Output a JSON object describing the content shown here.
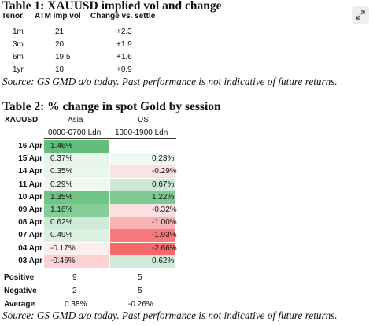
{
  "table1": {
    "title": "Table 1: XAUUSD implied vol and change",
    "headers": [
      "Tenor",
      "ATM imp vol",
      "Change vs. settle"
    ],
    "rows": [
      {
        "tenor": "1m",
        "vol": "21",
        "change": "+2.3"
      },
      {
        "tenor": "3m",
        "vol": "20",
        "change": "+1.9"
      },
      {
        "tenor": "6m",
        "vol": "19.5",
        "change": "+1.6"
      },
      {
        "tenor": "1yr",
        "vol": "18",
        "change": "+0.9"
      }
    ],
    "source": "Source: GS GMD a/o today. Past performance is not indicative of future returns."
  },
  "table2": {
    "title": "Table 2: % change in spot Gold by session",
    "corner": "XAUUSD",
    "col_asia": "Asia",
    "col_us": "US",
    "sub_asia": "0000-0700 Ldn",
    "sub_us": "1300-1900 Ldn",
    "rows": [
      {
        "date": "16 Apr",
        "asia": "1.46%",
        "us": "",
        "asia_color": "#63be7b",
        "us_color": "#ffffff"
      },
      {
        "date": "15 Apr",
        "asia": "0.37%",
        "us": "0.23%",
        "asia_color": "#e8f5eb",
        "us_color": "#f1f9f3"
      },
      {
        "date": "14 Apr",
        "asia": "0.35%",
        "us": "-0.29%",
        "asia_color": "#eaf6ed",
        "us_color": "#fbe2e3"
      },
      {
        "date": "11 Apr",
        "asia": "0.29%",
        "us": "0.67%",
        "asia_color": "#eef8f1",
        "us_color": "#cbe9d4"
      },
      {
        "date": "10 Apr",
        "asia": "1.35%",
        "us": "1.22%",
        "asia_color": "#70c486",
        "us_color": "#7fca93"
      },
      {
        "date": "09 Apr",
        "asia": "1.16%",
        "us": "-0.32%",
        "asia_color": "#86cd98",
        "us_color": "#fbe0e1"
      },
      {
        "date": "08 Apr",
        "asia": "0.62%",
        "us": "-1.00%",
        "asia_color": "#cfebd8",
        "us_color": "#f9b3b5"
      },
      {
        "date": "07 Apr",
        "asia": "0.49%",
        "us": "-1.93%",
        "asia_color": "#ddf1e3",
        "us_color": "#f8797b"
      },
      {
        "date": "04 Apr",
        "asia": "-0.17%",
        "us": "-2.66%",
        "asia_color": "#fcedee",
        "us_color": "#f8696b"
      },
      {
        "date": "03 Apr",
        "asia": "-0.46%",
        "us": "0.62%",
        "asia_color": "#fad2d4",
        "us_color": "#cfebd8"
      }
    ],
    "summary": [
      {
        "label": "Positive",
        "asia": "9",
        "us": "5"
      },
      {
        "label": "Negative",
        "asia": "2",
        "us": "5"
      },
      {
        "label": "Average",
        "asia": "0.38%",
        "us": "-0.26%"
      }
    ],
    "source": "Source: GS GMD a/o today. Past performance is not indicative of future returns."
  },
  "expand_icon": "expand-icon"
}
